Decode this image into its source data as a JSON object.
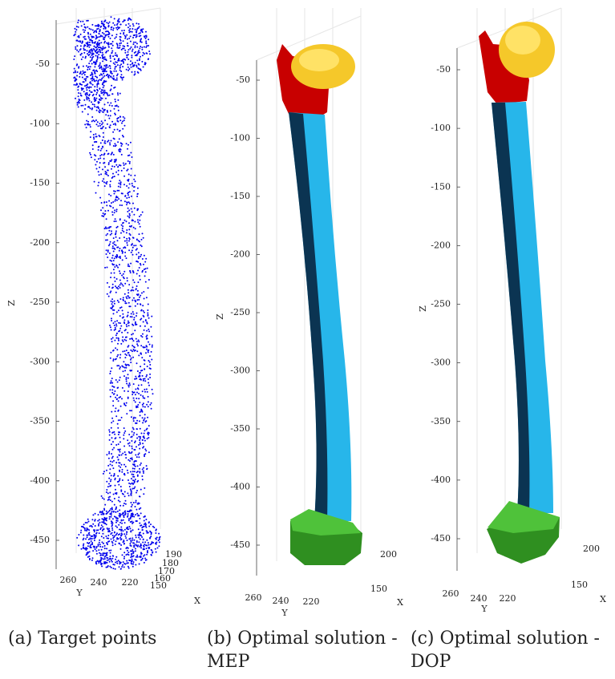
{
  "panels": [
    {
      "z_label": "Z",
      "x_label": "X",
      "y_label": "Y",
      "z_ticks": [
        -50,
        -100,
        -150,
        -200,
        -250,
        -300,
        -350,
        -400,
        -450
      ],
      "x_ticks": [
        190,
        180,
        170,
        160,
        150
      ],
      "y_ticks": [
        260,
        240,
        220
      ],
      "caption": [
        "(a) Target points"
      ]
    },
    {
      "z_label": "Z",
      "x_label": "X",
      "y_label": "Y",
      "z_ticks": [
        -50,
        -100,
        -150,
        -200,
        -250,
        -300,
        -350,
        -400,
        -450
      ],
      "x_ticks": [
        200,
        150
      ],
      "y_ticks": [
        260,
        240,
        220
      ],
      "caption": [
        "(b) Optimal solution -",
        "MEP"
      ]
    },
    {
      "z_label": "Z",
      "x_label": "X",
      "y_label": "Y",
      "z_ticks": [
        -50,
        -100,
        -150,
        -200,
        -250,
        -300,
        -350,
        -400,
        -450
      ],
      "x_ticks": [
        200,
        150
      ],
      "y_ticks": [
        260,
        240,
        220
      ],
      "caption": [
        "(c) Optimal solution -",
        "DOP"
      ]
    }
  ]
}
